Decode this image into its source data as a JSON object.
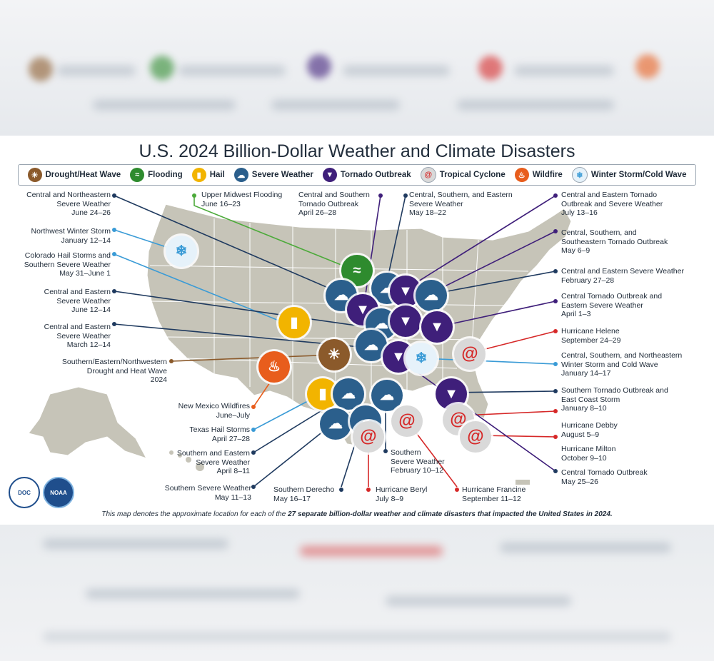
{
  "title": "U.S. 2024 Billion-Dollar Weather and Climate Disasters",
  "footnote_prefix": "This map denotes the approximate location for each of the ",
  "footnote_bold": "27 separate billion-dollar weather and climate disasters that impacted the United States in 2024.",
  "colors": {
    "drought": "#8b5a2b",
    "flooding": "#2e8b2e",
    "hail": "#f2b400",
    "severe": "#2b5f8c",
    "tornado": "#3f1f7a",
    "cyclone": "#d9d9d9",
    "cyclone_mark": "#d62828",
    "wildfire": "#e85d1c",
    "winter": "#e6f2fa",
    "land": "#c6c4b8",
    "state_line": "#ffffff"
  },
  "legend": [
    {
      "key": "drought",
      "label": "Drought/Heat Wave",
      "icon": "drought-icon",
      "glyph": "☀"
    },
    {
      "key": "flooding",
      "label": "Flooding",
      "icon": "flooding-icon",
      "glyph": "≈"
    },
    {
      "key": "hail",
      "label": "Hail",
      "icon": "hail-icon",
      "glyph": "▮"
    },
    {
      "key": "severe",
      "label": "Severe Weather",
      "icon": "severe-weather-icon",
      "glyph": "☁"
    },
    {
      "key": "tornado",
      "label": "Tornado Outbreak",
      "icon": "tornado-icon",
      "glyph": "▼"
    },
    {
      "key": "cyclone",
      "label": "Tropical Cyclone",
      "icon": "tropical-cyclone-icon",
      "glyph": "@"
    },
    {
      "key": "wildfire",
      "label": "Wildfire",
      "icon": "wildfire-icon",
      "glyph": "♨"
    },
    {
      "key": "winter",
      "label": "Winter Storm/Cold Wave",
      "icon": "winter-storm-icon",
      "glyph": "❄"
    }
  ],
  "labels_left": [
    {
      "title": "Central and Northeastern\nSevere Weather",
      "date": "June 24–26"
    },
    {
      "title": "Northwest Winter Storm",
      "date": "January 12–14"
    },
    {
      "title": "Colorado Hail Storms and\nSouthern Severe Weather",
      "date": "May 31–June 1"
    },
    {
      "title": "Central and Eastern\nSevere Weather",
      "date": "June 12–14"
    },
    {
      "title": "Central and Eastern\nSevere Weather",
      "date": "March 12–14"
    },
    {
      "title": "Southern/Eastern/Northwestern\nDrought and Heat Wave",
      "date": "2024"
    },
    {
      "title": "New Mexico Wildfires",
      "date": "June–July"
    },
    {
      "title": "Texas Hail Storms",
      "date": "April 27–28"
    },
    {
      "title": "Southern and Eastern\nSevere Weather",
      "date": "April 8–11"
    },
    {
      "title": "Southern Severe Weather",
      "date": "May 11–13"
    }
  ],
  "labels_top": [
    {
      "title": "Upper Midwest Flooding",
      "date": "June 16–23"
    },
    {
      "title": "Central and Southern\nTornado Outbreak",
      "date": "April 26–28"
    },
    {
      "title": "Central, Southern, and Eastern\nSevere Weather",
      "date": "May 18–22"
    }
  ],
  "labels_right": [
    {
      "title": "Central and Eastern Tornado\nOutbreak and Severe Weather",
      "date": "July 13–16"
    },
    {
      "title": "Central, Southern, and\nSoutheastern Tornado Outbreak",
      "date": "May 6–9"
    },
    {
      "title": "Central and Eastern Severe Weather",
      "date": "February 27–28"
    },
    {
      "title": "Central Tornado Outbreak and\nEastern Severe Weather",
      "date": "April 1–3"
    },
    {
      "title": "Hurricane Helene",
      "date": "September 24–29"
    },
    {
      "title": "Central, Southern, and Northeastern\nWinter Storm and Cold Wave",
      "date": "January 14–17"
    },
    {
      "title": "Southern Tornado Outbreak and\nEast Coast Storm",
      "date": "January 8–10"
    },
    {
      "title": "Hurricane Debby",
      "date": "August 5–9"
    },
    {
      "title": "Hurricane Milton",
      "date": "October 9–10"
    },
    {
      "title": "Central Tornado Outbreak",
      "date": "May 25–26"
    }
  ],
  "labels_bottom": [
    {
      "title": "Southern Derecho",
      "date": "May 16–17"
    },
    {
      "title": "Hurricane Beryl",
      "date": "July 8–9"
    },
    {
      "title": "Southern\nSevere Weather",
      "date": "February 10–12"
    },
    {
      "title": "Hurricane Francine",
      "date": "September 11–12"
    }
  ],
  "seals": [
    {
      "name": "department-of-commerce-seal",
      "text": "DOC"
    },
    {
      "name": "noaa-logo",
      "text": "NOAA"
    }
  ]
}
